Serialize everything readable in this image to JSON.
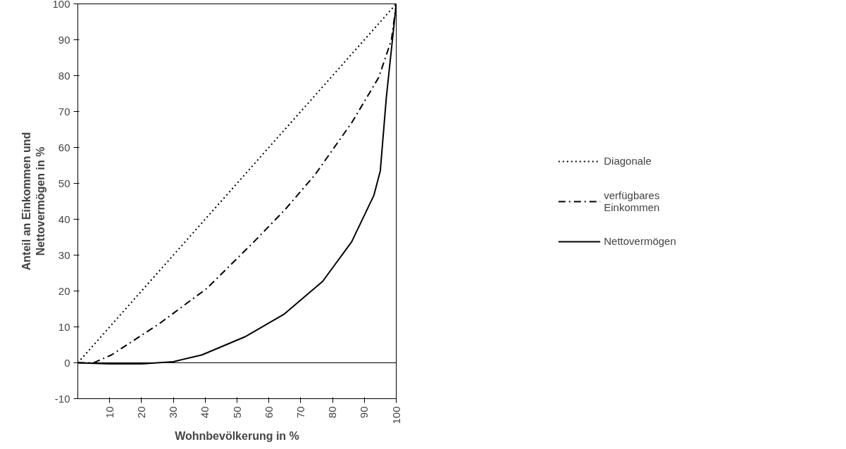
{
  "chart_data": {
    "type": "line",
    "xlabel": "Wohnbevölkerung in %",
    "ylabel": "Anteil an Einkommen und\nNettovermögen in %",
    "xlim": [
      0,
      100
    ],
    "ylim": [
      -10,
      100
    ],
    "xticks": [
      10,
      20,
      30,
      40,
      50,
      60,
      70,
      80,
      90,
      100
    ],
    "yticks": [
      -10,
      0,
      10,
      20,
      30,
      40,
      50,
      60,
      70,
      80,
      90,
      100
    ],
    "grid": false,
    "legend": "right",
    "ref_lines": [
      {
        "axis": "y",
        "value": 0,
        "color": "#000000",
        "line_style": "solid"
      }
    ],
    "series": [
      {
        "name": "Diagonale",
        "color": "#000000",
        "line_style": "dotted",
        "x": [
          0,
          100
        ],
        "values": [
          0,
          100
        ]
      },
      {
        "name": "verfügbares\nEinkommen",
        "color": "#000000",
        "line_style": "dashdot",
        "x": [
          0,
          5,
          10.6,
          25.6,
          40.5,
          55.3,
          65,
          74.5,
          86.1,
          94.5,
          98.5,
          100
        ],
        "values": [
          0,
          0,
          2.2,
          10.9,
          20.7,
          33.7,
          42.6,
          52.4,
          67,
          79.5,
          90,
          100
        ]
      },
      {
        "name": "Nettovermögen",
        "color": "#000000",
        "line_style": "solid",
        "x": [
          0,
          10,
          20,
          30,
          39,
          52.4,
          64.7,
          76.9,
          86,
          93,
          95,
          96.9,
          100
        ],
        "values": [
          0,
          -0.3,
          -0.3,
          0.3,
          2.2,
          7.2,
          13.5,
          22.7,
          33.7,
          46.7,
          53.5,
          74,
          100
        ]
      }
    ]
  }
}
